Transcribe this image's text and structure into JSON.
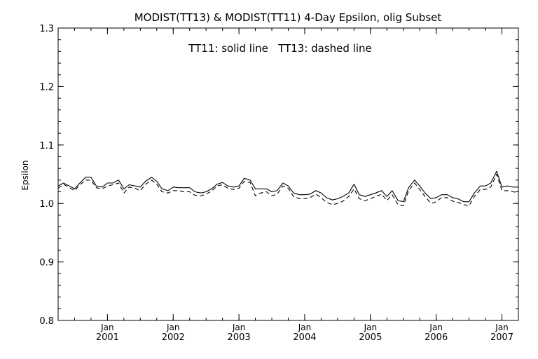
{
  "chart_data": {
    "type": "line",
    "title": "MODIST(TT13) & MODIST(TT11) 4-Day Epsilon, olig Subset",
    "annotation": "TT11: solid line   TT13: dashed line",
    "ylabel": "Epsilon",
    "xlabel": "",
    "xlim": [
      2000.25,
      2007.25
    ],
    "ylim": [
      0.8,
      1.3
    ],
    "yticks": [
      0.8,
      0.9,
      1.0,
      1.1,
      1.2,
      1.3
    ],
    "ytick_labels": [
      "0.8",
      "0.9",
      "1.0",
      "1.1",
      "1.2",
      "1.3"
    ],
    "xticks_major": [
      {
        "x": 2001.0,
        "month": "Jan",
        "year": "2001"
      },
      {
        "x": 2002.0,
        "month": "Jan",
        "year": "2002"
      },
      {
        "x": 2003.0,
        "month": "Jan",
        "year": "2003"
      },
      {
        "x": 2004.0,
        "month": "Jan",
        "year": "2004"
      },
      {
        "x": 2005.0,
        "month": "Jan",
        "year": "2005"
      },
      {
        "x": 2006.0,
        "month": "Jan",
        "year": "2006"
      },
      {
        "x": 2007.0,
        "month": "Jan",
        "year": "2007"
      }
    ],
    "grid": false,
    "series": [
      {
        "label": "TT11",
        "style": "solid",
        "color": "#000000",
        "x": [
          2000.25,
          2000.33,
          2000.42,
          2000.5,
          2000.58,
          2000.67,
          2000.75,
          2000.83,
          2000.92,
          2001.0,
          2001.08,
          2001.17,
          2001.25,
          2001.33,
          2001.42,
          2001.5,
          2001.58,
          2001.67,
          2001.75,
          2001.83,
          2001.92,
          2002.0,
          2002.08,
          2002.17,
          2002.25,
          2002.33,
          2002.42,
          2002.5,
          2002.58,
          2002.67,
          2002.75,
          2002.83,
          2002.92,
          2003.0,
          2003.08,
          2003.17,
          2003.25,
          2003.33,
          2003.42,
          2003.5,
          2003.58,
          2003.67,
          2003.75,
          2003.83,
          2003.92,
          2004.0,
          2004.08,
          2004.17,
          2004.25,
          2004.33,
          2004.42,
          2004.5,
          2004.58,
          2004.67,
          2004.75,
          2004.83,
          2004.92,
          2005.0,
          2005.08,
          2005.17,
          2005.25,
          2005.33,
          2005.42,
          2005.5,
          2005.58,
          2005.67,
          2005.75,
          2005.83,
          2005.92,
          2006.0,
          2006.08,
          2006.17,
          2006.25,
          2006.33,
          2006.42,
          2006.5,
          2006.58,
          2006.67,
          2006.75,
          2006.83,
          2006.92,
          2007.0,
          2007.08,
          2007.17,
          2007.25
        ],
        "y": [
          1.03,
          1.035,
          1.03,
          1.025,
          1.035,
          1.045,
          1.045,
          1.03,
          1.028,
          1.035,
          1.035,
          1.04,
          1.025,
          1.032,
          1.03,
          1.028,
          1.038,
          1.045,
          1.038,
          1.025,
          1.022,
          1.028,
          1.027,
          1.027,
          1.027,
          1.02,
          1.018,
          1.02,
          1.025,
          1.033,
          1.036,
          1.03,
          1.028,
          1.03,
          1.043,
          1.04,
          1.025,
          1.025,
          1.025,
          1.02,
          1.022,
          1.035,
          1.03,
          1.018,
          1.015,
          1.015,
          1.016,
          1.022,
          1.018,
          1.01,
          1.006,
          1.008,
          1.012,
          1.018,
          1.033,
          1.015,
          1.012,
          1.015,
          1.018,
          1.022,
          1.012,
          1.022,
          1.005,
          1.003,
          1.027,
          1.04,
          1.03,
          1.018,
          1.008,
          1.01,
          1.015,
          1.015,
          1.01,
          1.008,
          1.003,
          1.003,
          1.018,
          1.03,
          1.03,
          1.035,
          1.055,
          1.028,
          1.03,
          1.028,
          1.028
        ]
      },
      {
        "label": "TT13",
        "style": "dashed",
        "color": "#000000",
        "x": [
          2000.25,
          2000.33,
          2000.42,
          2000.5,
          2000.58,
          2000.67,
          2000.75,
          2000.83,
          2000.92,
          2001.0,
          2001.08,
          2001.17,
          2001.25,
          2001.33,
          2001.42,
          2001.5,
          2001.58,
          2001.67,
          2001.75,
          2001.83,
          2001.92,
          2002.0,
          2002.08,
          2002.17,
          2002.25,
          2002.33,
          2002.42,
          2002.5,
          2002.58,
          2002.67,
          2002.75,
          2002.83,
          2002.92,
          2003.0,
          2003.08,
          2003.17,
          2003.25,
          2003.33,
          2003.42,
          2003.5,
          2003.58,
          2003.67,
          2003.75,
          2003.83,
          2003.92,
          2004.0,
          2004.08,
          2004.17,
          2004.25,
          2004.33,
          2004.42,
          2004.5,
          2004.58,
          2004.67,
          2004.75,
          2004.83,
          2004.92,
          2005.0,
          2005.08,
          2005.17,
          2005.25,
          2005.33,
          2005.42,
          2005.5,
          2005.58,
          2005.67,
          2005.75,
          2005.83,
          2005.92,
          2006.0,
          2006.08,
          2006.17,
          2006.25,
          2006.33,
          2006.42,
          2006.5,
          2006.58,
          2006.67,
          2006.75,
          2006.83,
          2006.92,
          2007.0,
          2007.08,
          2007.17,
          2007.25
        ],
        "y": [
          1.026,
          1.033,
          1.027,
          1.022,
          1.032,
          1.04,
          1.04,
          1.027,
          1.025,
          1.03,
          1.032,
          1.035,
          1.018,
          1.028,
          1.026,
          1.022,
          1.033,
          1.04,
          1.033,
          1.02,
          1.018,
          1.022,
          1.022,
          1.02,
          1.02,
          1.014,
          1.013,
          1.016,
          1.021,
          1.03,
          1.032,
          1.026,
          1.024,
          1.026,
          1.038,
          1.036,
          1.013,
          1.018,
          1.02,
          1.013,
          1.016,
          1.03,
          1.026,
          1.012,
          1.008,
          1.008,
          1.01,
          1.016,
          1.01,
          1.002,
          0.998,
          1.0,
          1.004,
          1.012,
          1.025,
          1.008,
          1.005,
          1.008,
          1.012,
          1.016,
          1.005,
          1.015,
          0.998,
          0.996,
          1.022,
          1.035,
          1.024,
          1.012,
          1.0,
          1.003,
          1.01,
          1.01,
          1.004,
          1.002,
          0.998,
          0.996,
          1.012,
          1.024,
          1.024,
          1.028,
          1.05,
          1.022,
          1.022,
          1.02,
          1.018
        ]
      }
    ]
  }
}
